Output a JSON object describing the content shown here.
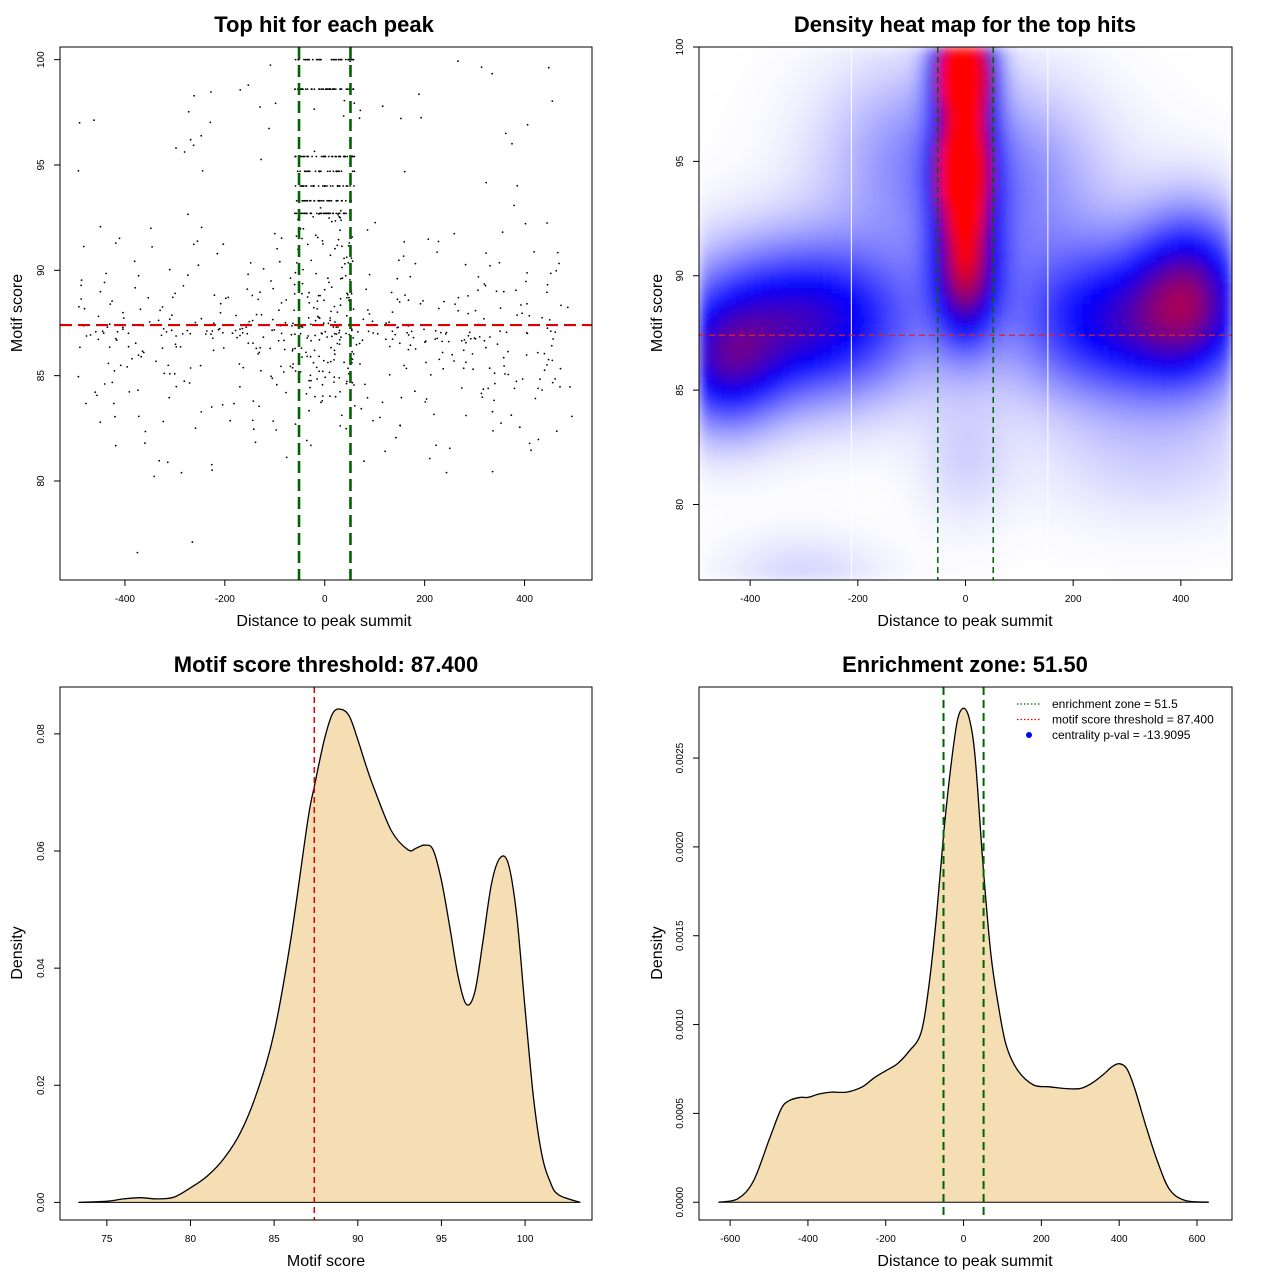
{
  "chart_data": [
    {
      "type": "scatter",
      "title": "Top hit for each peak",
      "xlabel": "Distance to peak summit",
      "ylabel": "Motif score",
      "xlim": [
        -530,
        535
      ],
      "ylim": [
        75.3,
        100.6
      ],
      "xticks": [
        "-400",
        "-200",
        "0",
        "200",
        "400"
      ],
      "yticks": [
        "80",
        "85",
        "90",
        "95",
        "100"
      ],
      "hline": 87.4,
      "vlines": [
        -51.5,
        51.5
      ],
      "hline_color": "#dd0000",
      "vline_color": "#006400",
      "point_color": "#000000",
      "n_points_approx": 900,
      "score_levels": [
        100,
        98.6,
        95.4,
        94.7,
        94.0,
        93.3,
        92.7
      ]
    },
    {
      "type": "heatmap",
      "title": "Density heat map for the top hits",
      "xlabel": "Distance to peak summit",
      "ylabel": "Motif score",
      "xlim": [
        -495,
        495
      ],
      "ylim": [
        76.7,
        100.0
      ],
      "xticks": [
        "-400",
        "-200",
        "0",
        "200",
        "400"
      ],
      "yticks": [
        "80",
        "85",
        "90",
        "95",
        "100"
      ],
      "hline": 87.4,
      "vlines": [
        -51.5,
        51.5
      ],
      "white_vlines": [
        -212,
        153
      ],
      "colormap": [
        "#ffffff",
        "#0000ff",
        "#ff0000"
      ],
      "density_blobs": [
        {
          "x": -5,
          "y": 99,
          "sx": 30,
          "sy": 1.2,
          "w": 1.6
        },
        {
          "x": -5,
          "y": 94.6,
          "sx": 28,
          "sy": 1.4,
          "w": 1.2
        },
        {
          "x": 0,
          "y": 90.5,
          "sx": 40,
          "sy": 2.2,
          "w": 0.7
        },
        {
          "x": 0,
          "y": 97,
          "sx": 35,
          "sy": 3.0,
          "w": 0.6
        },
        {
          "x": -300,
          "y": 88,
          "sx": 150,
          "sy": 2.4,
          "w": 0.6
        },
        {
          "x": -450,
          "y": 86,
          "sx": 70,
          "sy": 2.0,
          "w": 0.4
        },
        {
          "x": 300,
          "y": 88,
          "sx": 150,
          "sy": 2.4,
          "w": 0.55
        },
        {
          "x": 420,
          "y": 89.5,
          "sx": 70,
          "sy": 2.5,
          "w": 0.45
        },
        {
          "x": -100,
          "y": 95,
          "sx": 120,
          "sy": 3,
          "w": 0.2
        },
        {
          "x": 100,
          "y": 94,
          "sx": 120,
          "sy": 3,
          "w": 0.2
        },
        {
          "x": -300,
          "y": 77,
          "sx": 100,
          "sy": 1.2,
          "w": 0.08
        },
        {
          "x": 350,
          "y": 82,
          "sx": 150,
          "sy": 2,
          "w": 0.08
        },
        {
          "x": 0,
          "y": 82,
          "sx": 60,
          "sy": 2,
          "w": 0.08
        }
      ]
    },
    {
      "type": "area",
      "title": "Motif score threshold: 87.400",
      "xlabel": "Motif score",
      "ylabel": "Density",
      "xlim": [
        72.2,
        104.0
      ],
      "ylim": [
        -0.003,
        0.088
      ],
      "xticks": [
        "75",
        "80",
        "85",
        "90",
        "95",
        "100"
      ],
      "yticks": [
        "0.00",
        "0.02",
        "0.04",
        "0.06",
        "0.08"
      ],
      "vline": 87.4,
      "vline_color": "#dd0000",
      "fill": "#f5deb3",
      "x": [
        73.3,
        75,
        76,
        77,
        78,
        79,
        80,
        81,
        82,
        83,
        84,
        85,
        86,
        87,
        87.4,
        88,
        88.5,
        89,
        89.5,
        90,
        90.5,
        91,
        92,
        93,
        93.5,
        94,
        94.5,
        95,
        95.5,
        96,
        96.5,
        97,
        97.5,
        98,
        98.5,
        99,
        99.5,
        100,
        100.5,
        101,
        101.5,
        102,
        103.3
      ],
      "y": [
        0,
        0.0002,
        0.0006,
        0.0008,
        0.0006,
        0.0009,
        0.0025,
        0.0045,
        0.0075,
        0.012,
        0.019,
        0.029,
        0.045,
        0.065,
        0.071,
        0.079,
        0.0835,
        0.0842,
        0.083,
        0.079,
        0.0745,
        0.0705,
        0.0635,
        0.0602,
        0.0605,
        0.061,
        0.0602,
        0.055,
        0.047,
        0.0385,
        0.0338,
        0.036,
        0.045,
        0.0545,
        0.0588,
        0.0578,
        0.049,
        0.033,
        0.018,
        0.0082,
        0.0035,
        0.0013,
        0
      ]
    },
    {
      "type": "area",
      "title": "Enrichment zone: 51.50",
      "xlabel": "Distance to peak summit",
      "ylabel": "Density",
      "xlim": [
        -680,
        690
      ],
      "ylim": [
        -0.0001,
        0.0029
      ],
      "xticks": [
        "-600",
        "-400",
        "-200",
        "0",
        "200",
        "400",
        "600"
      ],
      "yticks": [
        "0.0000",
        "0.0005",
        "0.0010",
        "0.0015",
        "0.0020",
        "0.0025"
      ],
      "vlines": [
        -51.5,
        51.5
      ],
      "vline_color": "#006400",
      "fill": "#f5deb3",
      "x": [
        -630,
        -580,
        -540,
        -500,
        -470,
        -450,
        -420,
        -400,
        -370,
        -340,
        -300,
        -260,
        -230,
        -200,
        -170,
        -140,
        -110,
        -90,
        -70,
        -50,
        -30,
        -15,
        0,
        15,
        30,
        50,
        70,
        90,
        110,
        140,
        180,
        220,
        260,
        300,
        330,
        360,
        380,
        400,
        420,
        440,
        470,
        500,
        530,
        570,
        630
      ],
      "y": [
        0,
        2e-05,
        0.00012,
        0.00035,
        0.00052,
        0.00057,
        0.00059,
        0.00059,
        0.00061,
        0.00062,
        0.00062,
        0.00065,
        0.0007,
        0.00074,
        0.00078,
        0.00085,
        0.00095,
        0.0012,
        0.0016,
        0.0021,
        0.0025,
        0.00272,
        0.00278,
        0.00272,
        0.0025,
        0.0019,
        0.0014,
        0.0011,
        0.00088,
        0.00074,
        0.00066,
        0.00065,
        0.00064,
        0.00064,
        0.00067,
        0.00072,
        0.00076,
        0.00078,
        0.00075,
        0.00064,
        0.00042,
        0.00022,
        7e-05,
        1e-05,
        0
      ],
      "legend": {
        "position": "top-right",
        "entries": [
          {
            "label": "enrichment zone = 51.5",
            "style": "dotted-line",
            "color": "#006400"
          },
          {
            "label": "motif score threshold = 87.400",
            "style": "dotted-line",
            "color": "#dd0000"
          },
          {
            "label": "centrality p-val = -13.9095",
            "style": "point",
            "color": "#0000ff"
          }
        ]
      }
    }
  ]
}
